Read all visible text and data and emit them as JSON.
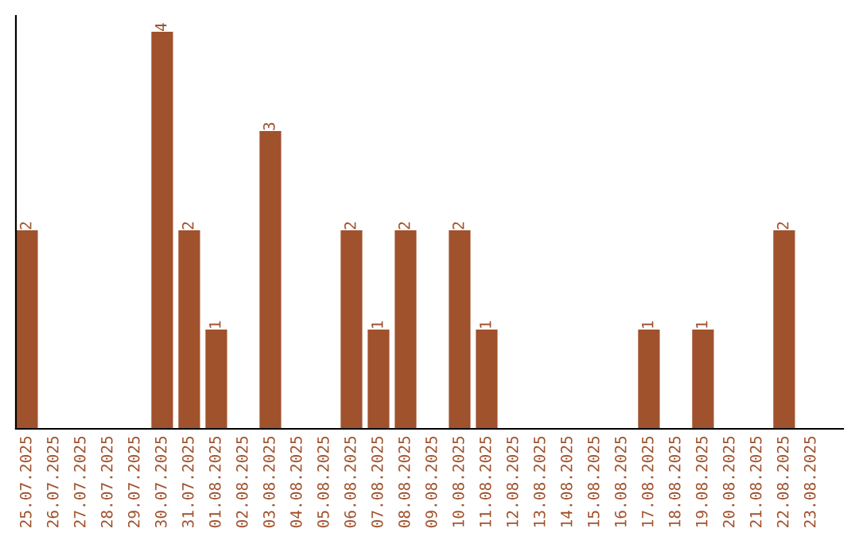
{
  "chart_data": {
    "type": "bar",
    "categories": [
      "25.07.2025",
      "26.07.2025",
      "27.07.2025",
      "28.07.2025",
      "29.07.2025",
      "30.07.2025",
      "31.07.2025",
      "01.08.2025",
      "02.08.2025",
      "03.08.2025",
      "04.08.2025",
      "05.08.2025",
      "06.08.2025",
      "07.08.2025",
      "08.08.2025",
      "09.08.2025",
      "10.08.2025",
      "11.08.2025",
      "12.08.2025",
      "13.08.2025",
      "14.08.2025",
      "15.08.2025",
      "16.08.2025",
      "17.08.2025",
      "18.08.2025",
      "19.08.2025",
      "20.08.2025",
      "21.08.2025",
      "22.08.2025",
      "23.08.2025"
    ],
    "values": [
      2,
      0,
      0,
      0,
      0,
      4,
      2,
      1,
      0,
      3,
      0,
      0,
      2,
      1,
      2,
      0,
      2,
      1,
      0,
      0,
      0,
      0,
      0,
      1,
      0,
      1,
      0,
      0,
      2,
      0
    ],
    "value_labels": [
      "2",
      null,
      null,
      null,
      null,
      "4",
      "2",
      "1",
      null,
      "3",
      null,
      null,
      "2",
      "1",
      "2",
      null,
      "2",
      "1",
      null,
      null,
      null,
      null,
      null,
      "1",
      null,
      "1",
      null,
      null,
      "2",
      null
    ],
    "color": "#a0522d",
    "tick_labels": "x",
    "grid": false,
    "legend": false
  }
}
